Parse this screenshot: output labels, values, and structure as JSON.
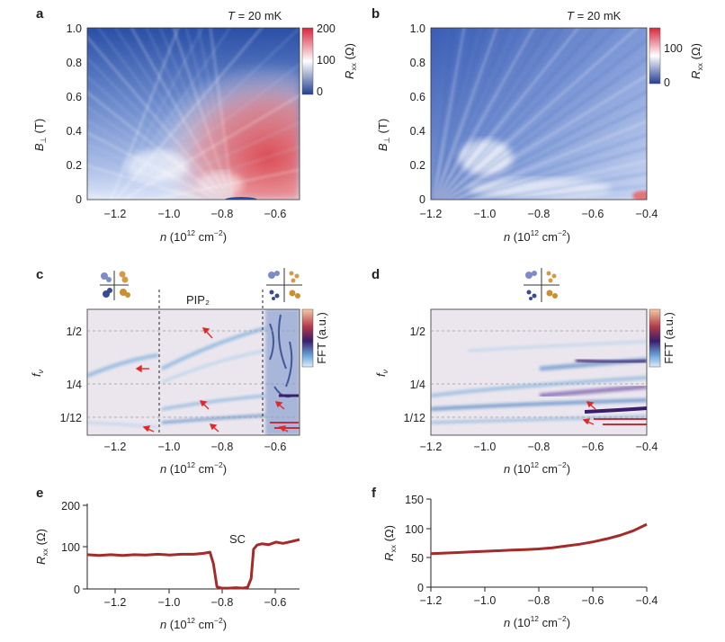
{
  "panels": {
    "a": {
      "label": "a",
      "temp": "T = 20 mK",
      "cbar_title": "R_xx (Ω)",
      "cbar_ticks": [
        "200",
        "100",
        "0"
      ],
      "yticks": [
        "1.0",
        "0.8",
        "0.6",
        "0.4",
        "0.2",
        "0"
      ],
      "xticks": [
        "−1.2",
        "−1.0",
        "−0.8",
        "−0.6"
      ]
    },
    "b": {
      "label": "b",
      "temp": "T = 20 mK",
      "cbar_title": "R_xx (Ω)",
      "cbar_ticks": [
        "100",
        "0"
      ],
      "yticks": [
        "1.0",
        "0.8",
        "0.6",
        "0.4",
        "0.2",
        "0"
      ],
      "xticks": [
        "−1.2",
        "−1.0",
        "−0.8",
        "−0.6",
        "−0.4"
      ]
    },
    "c": {
      "label": "c",
      "region_label": "PIP₂",
      "cbar_title": "FFT (a.u.)",
      "yticks": [
        "1/2",
        "1/4",
        "1/12"
      ],
      "xticks": [
        "−1.2",
        "−1.0",
        "−0.8",
        "−0.6"
      ]
    },
    "d": {
      "label": "d",
      "cbar_title": "FFT (a.u.)",
      "yticks": [
        "1/2",
        "1/4",
        "1/12"
      ],
      "xticks": [
        "−1.2",
        "−1.0",
        "−0.8",
        "−0.6",
        "−0.4"
      ]
    },
    "e": {
      "label": "e",
      "annotation": "SC",
      "yticks": [
        "200",
        "100",
        "0"
      ],
      "xticks": [
        "−1.2",
        "−1.0",
        "−0.8",
        "−0.6"
      ]
    },
    "f": {
      "label": "f",
      "yticks": [
        "150",
        "100",
        "50",
        "0"
      ],
      "xticks": [
        "−1.2",
        "−1.0",
        "−0.8",
        "−0.6",
        "−0.4"
      ]
    }
  },
  "labels": {
    "n_axis": "n (10¹² cm⁻²)",
    "b_axis": "B⊥ (T)",
    "f_axis": "fν",
    "rxx_axis": "Rxx (Ω)"
  },
  "colors": {
    "trace": "#a52a2a",
    "map_low": "#2a4a9e",
    "map_mid": "#ffffff",
    "map_high": "#e0464b"
  },
  "chart_data": [
    {
      "panel": "a",
      "type": "heatmap",
      "xlabel": "n (10¹² cm⁻²)",
      "ylabel": "B⊥ (T)",
      "colorbar": "R_xx (Ω)",
      "xlim": [
        -1.35,
        -0.45
      ],
      "ylim": [
        0,
        1.0
      ],
      "clim": [
        0,
        200
      ]
    },
    {
      "panel": "b",
      "type": "heatmap",
      "xlabel": "n (10¹² cm⁻²)",
      "ylabel": "B⊥ (T)",
      "colorbar": "R_xx (Ω)",
      "xlim": [
        -1.2,
        -0.4
      ],
      "ylim": [
        0,
        1.0
      ],
      "clim": [
        0,
        150
      ]
    },
    {
      "panel": "c",
      "type": "heatmap",
      "xlabel": "n (10¹² cm⁻²)",
      "ylabel": "f_ν",
      "colorbar": "FFT (a.u.)",
      "xlim": [
        -1.35,
        -0.45
      ],
      "ylim": [
        0,
        0.6
      ],
      "hlines": [
        0.5,
        0.25,
        0.0833
      ],
      "vlines": [
        -1.035,
        -0.6
      ]
    },
    {
      "panel": "d",
      "type": "heatmap",
      "xlabel": "n (10¹² cm⁻²)",
      "ylabel": "f_ν",
      "colorbar": "FFT (a.u.)",
      "xlim": [
        -1.2,
        -0.4
      ],
      "ylim": [
        0,
        0.6
      ],
      "hlines": [
        0.5,
        0.25,
        0.0833
      ]
    },
    {
      "panel": "e",
      "type": "line",
      "xlabel": "n (10¹² cm⁻²)",
      "ylabel": "R_xx (Ω)",
      "xlim": [
        -1.35,
        -0.45
      ],
      "ylim": [
        0,
        200
      ],
      "x": [
        -1.35,
        -1.3,
        -1.25,
        -1.2,
        -1.15,
        -1.1,
        -1.05,
        -1.0,
        -0.95,
        -0.9,
        -0.86,
        -0.83,
        -0.815,
        -0.8,
        -0.78,
        -0.75,
        -0.72,
        -0.69,
        -0.67,
        -0.655,
        -0.645,
        -0.63,
        -0.61,
        -0.58,
        -0.55,
        -0.52,
        -0.48,
        -0.45
      ],
      "y": [
        82,
        80,
        82,
        80,
        82,
        81,
        83,
        81,
        83,
        83,
        85,
        88,
        60,
        5,
        2,
        2,
        3,
        2,
        4,
        25,
        95,
        105,
        108,
        106,
        112,
        109,
        114,
        118
      ]
    },
    {
      "panel": "f",
      "type": "line",
      "xlabel": "n (10¹² cm⁻²)",
      "ylabel": "R_xx (Ω)",
      "xlim": [
        -1.2,
        -0.4
      ],
      "ylim": [
        0,
        150
      ],
      "x": [
        -1.2,
        -1.15,
        -1.1,
        -1.05,
        -1.0,
        -0.95,
        -0.9,
        -0.85,
        -0.8,
        -0.75,
        -0.7,
        -0.65,
        -0.6,
        -0.55,
        -0.5,
        -0.45,
        -0.4
      ],
      "y": [
        57,
        58,
        59,
        60,
        61,
        62,
        63,
        64,
        65,
        67,
        70,
        73,
        77,
        82,
        88,
        96,
        107
      ]
    }
  ]
}
